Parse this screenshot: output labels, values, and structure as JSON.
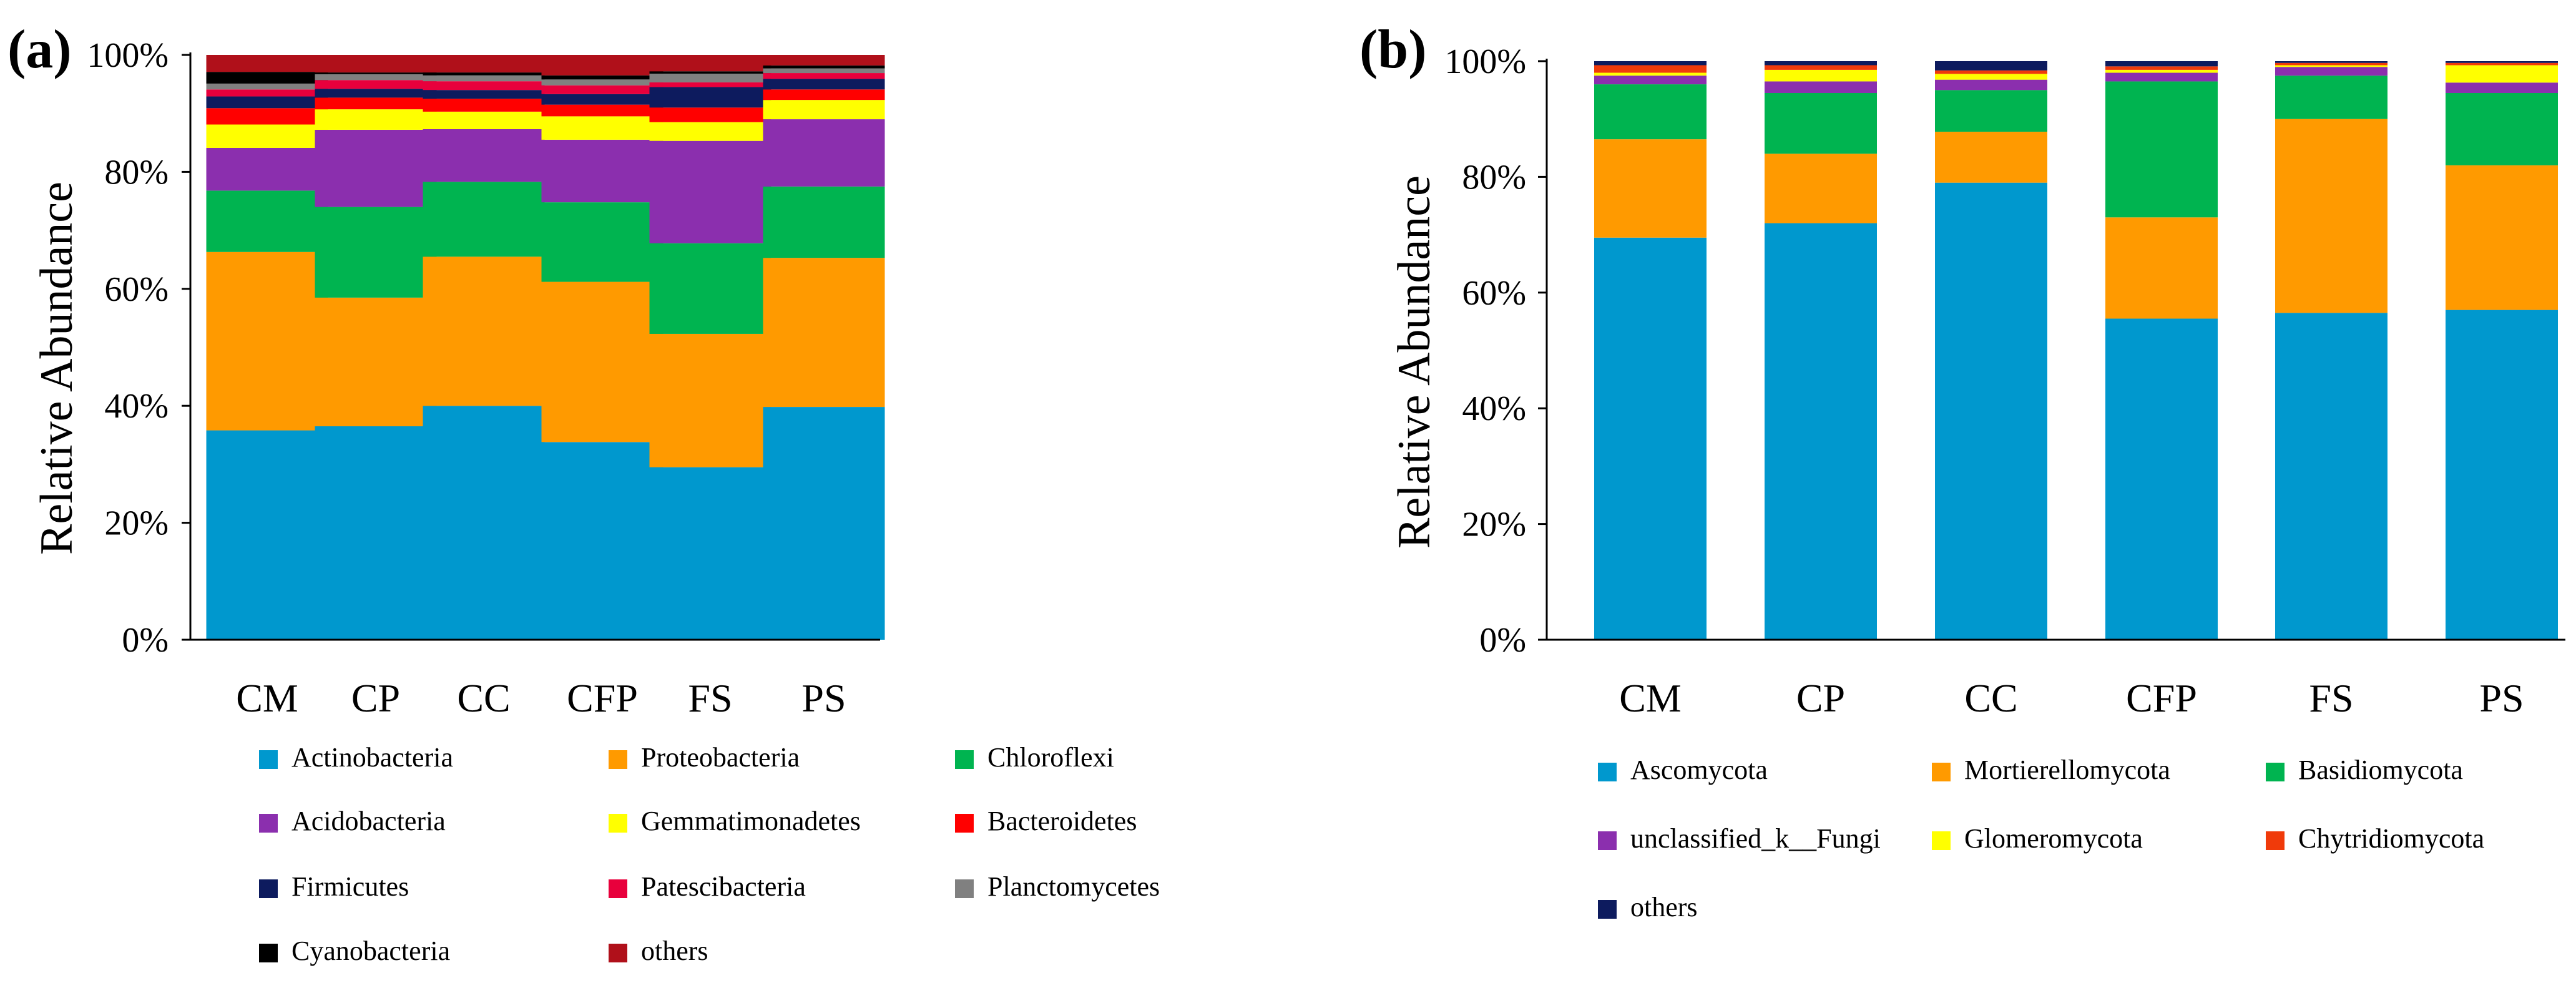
{
  "chart_data": [
    {
      "panel_label": "(a)",
      "type": "stacked-bar",
      "ylabel": "Relative Abundance",
      "ylim": [
        0,
        100
      ],
      "yticks": [
        "0%",
        "20%",
        "40%",
        "60%",
        "80%",
        "100%"
      ],
      "categories": [
        "CM",
        "CP",
        "CC",
        "CFP",
        "FS",
        "PS"
      ],
      "series": [
        {
          "name": "Actinobacteria",
          "color": "#0098CE",
          "values": [
            35.8,
            36.5,
            40.0,
            33.8,
            29.5,
            39.8
          ]
        },
        {
          "name": "Proteobacteria",
          "color": "#FF9A00",
          "values": [
            30.5,
            22.0,
            25.5,
            27.4,
            22.8,
            25.5
          ]
        },
        {
          "name": "Chloroflexi",
          "color": "#00B450",
          "values": [
            10.5,
            15.5,
            12.8,
            13.6,
            15.5,
            12.2
          ]
        },
        {
          "name": "Acidobacteria",
          "color": "#8B2FAE",
          "values": [
            7.3,
            13.2,
            9.0,
            10.7,
            17.5,
            11.5
          ]
        },
        {
          "name": "Gemmatimonadetes",
          "color": "#FFFF00",
          "values": [
            4.0,
            3.5,
            3.0,
            4.0,
            3.2,
            3.3
          ]
        },
        {
          "name": "Bacteroidetes",
          "color": "#FF0000",
          "values": [
            2.8,
            2.0,
            2.2,
            2.0,
            2.5,
            1.8
          ]
        },
        {
          "name": "Firmicutes",
          "color": "#0D1B5E",
          "values": [
            2.0,
            1.5,
            1.5,
            1.8,
            3.5,
            1.8
          ]
        },
        {
          "name": "Patescibacteria",
          "color": "#E8003C",
          "values": [
            1.2,
            1.5,
            1.5,
            1.5,
            0.8,
            1.0
          ]
        },
        {
          "name": "Planctomycetes",
          "color": "#808080",
          "values": [
            1.0,
            1.0,
            1.0,
            1.0,
            1.5,
            0.8
          ]
        },
        {
          "name": "Cyanobacteria",
          "color": "#000000",
          "values": [
            2.0,
            0.3,
            0.5,
            0.7,
            0.4,
            0.5
          ]
        },
        {
          "name": "others",
          "color": "#B0101A",
          "values": [
            2.9,
            3.0,
            3.0,
            3.5,
            2.8,
            1.8
          ]
        }
      ]
    },
    {
      "panel_label": "(b)",
      "type": "stacked-bar",
      "ylabel": "Relative Abundance",
      "ylim": [
        0,
        100
      ],
      "yticks": [
        "0%",
        "20%",
        "40%",
        "60%",
        "80%",
        "100%"
      ],
      "categories": [
        "CM",
        "CP",
        "CC",
        "CFP",
        "FS",
        "PS"
      ],
      "series": [
        {
          "name": "Ascomycota",
          "color": "#0098CE",
          "values": [
            69.5,
            72.0,
            79.0,
            55.5,
            56.5,
            57.0
          ]
        },
        {
          "name": "Mortierellomycota",
          "color": "#FF9A00",
          "values": [
            17.0,
            12.0,
            8.8,
            17.5,
            33.5,
            25.0
          ]
        },
        {
          "name": "Basidiomycota",
          "color": "#00B450",
          "values": [
            9.5,
            10.5,
            7.2,
            23.5,
            7.5,
            12.5
          ]
        },
        {
          "name": "unclassified_k__Fungi",
          "color": "#8B2FAE",
          "values": [
            1.5,
            2.0,
            1.8,
            1.5,
            1.5,
            1.8
          ]
        },
        {
          "name": "Glomeromycota",
          "color": "#FFFF00",
          "values": [
            0.5,
            2.0,
            1.0,
            0.5,
            0.3,
            3.0
          ]
        },
        {
          "name": "Chytridiomycota",
          "color": "#F03A0A",
          "values": [
            1.3,
            0.8,
            0.6,
            0.6,
            0.4,
            0.4
          ]
        },
        {
          "name": "others",
          "color": "#0D1B5E",
          "values": [
            0.7,
            0.7,
            1.6,
            0.9,
            0.3,
            0.3
          ]
        }
      ]
    }
  ]
}
